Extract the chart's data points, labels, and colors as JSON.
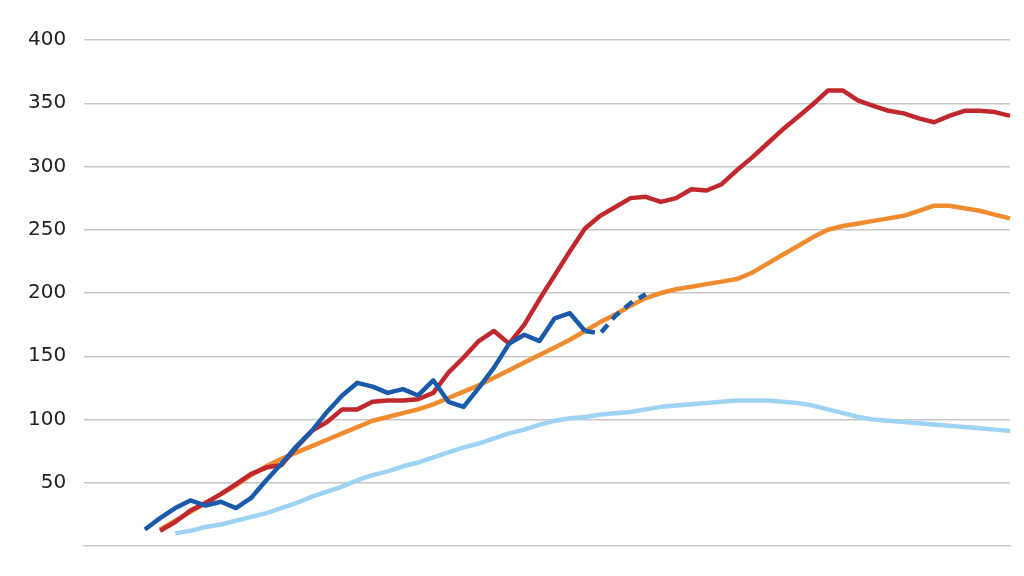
{
  "chart_data": {
    "type": "line",
    "categories": [
      null,
      null,
      null,
      null,
      null,
      null,
      null,
      null,
      null,
      null,
      null,
      null,
      null,
      null,
      null,
      null,
      null,
      null,
      null,
      null,
      null,
      null,
      null,
      null,
      null,
      null,
      null,
      null,
      null,
      null,
      null,
      null,
      null,
      null,
      null,
      null,
      null,
      null,
      null,
      null,
      null,
      null,
      null,
      null,
      null,
      null,
      null,
      null,
      null,
      null,
      null,
      null,
      null,
      null,
      null,
      null,
      null,
      null,
      null,
      null,
      null,
      null
    ],
    "series": [
      {
        "color": "#9fd3f3",
        "values": [
          null,
          null,
          null,
          null,
          null,
          null,
          10,
          12,
          15,
          17,
          20,
          23,
          26,
          30,
          34,
          39,
          43,
          47,
          52,
          56,
          59,
          63,
          66,
          70,
          74,
          78,
          81,
          85,
          89,
          92,
          96,
          99,
          101,
          102,
          104,
          105,
          106,
          108,
          110,
          111,
          112,
          113,
          114,
          115,
          115,
          115,
          114,
          113,
          111,
          108,
          105,
          102,
          100,
          99,
          98,
          97,
          96,
          95,
          94,
          93,
          92,
          91
        ]
      },
      {
        "color": "#ef8c2f",
        "values": [
          null,
          null,
          null,
          null,
          null,
          13,
          20,
          27,
          34,
          41,
          48,
          56,
          63,
          69,
          74,
          79,
          84,
          89,
          94,
          99,
          102,
          105,
          108,
          112,
          117,
          122,
          127,
          133,
          139,
          145,
          151,
          157,
          163,
          170,
          177,
          183,
          190,
          196,
          200,
          203,
          205,
          207,
          209,
          211,
          216,
          223,
          230,
          237,
          244,
          250,
          253,
          255,
          257,
          259,
          261,
          265,
          269,
          269,
          267,
          265,
          262,
          259
        ]
      },
      {
        "color": "#c0282d",
        "values": [
          null,
          null,
          null,
          null,
          null,
          12,
          19,
          28,
          34,
          41,
          49,
          57,
          62,
          64,
          78,
          91,
          98,
          108,
          108,
          114,
          115,
          115,
          116,
          121,
          137,
          149,
          162,
          170,
          160,
          175,
          195,
          214,
          233,
          251,
          261,
          268,
          275,
          276,
          272,
          275,
          282,
          281,
          286,
          297,
          307,
          318,
          329,
          339,
          349,
          360,
          360,
          352,
          348,
          344,
          342,
          338,
          335,
          340,
          344,
          344,
          343,
          340
        ]
      },
      {
        "color": "#1a5aa8",
        "values": [
          null,
          null,
          null,
          null,
          13,
          22,
          30,
          36,
          32,
          35,
          30,
          38,
          52,
          65,
          79,
          91,
          106,
          119,
          129,
          126,
          121,
          124,
          119,
          131,
          114,
          110,
          125,
          141,
          160,
          167,
          162,
          180,
          184,
          170,
          null,
          null,
          null,
          null,
          null,
          null,
          null,
          null,
          null,
          null,
          null,
          null,
          null,
          null,
          null,
          null,
          null,
          null,
          null,
          null,
          null,
          null,
          null,
          null,
          null,
          null,
          null,
          null
        ]
      },
      {
        "color": "#1a5aa8",
        "line_style": "dashed",
        "values": [
          null,
          null,
          null,
          null,
          null,
          null,
          null,
          null,
          null,
          null,
          null,
          null,
          null,
          null,
          null,
          null,
          null,
          null,
          null,
          null,
          null,
          null,
          null,
          null,
          null,
          null,
          null,
          null,
          null,
          null,
          null,
          null,
          null,
          170,
          168,
          182,
          192,
          199,
          null,
          null,
          null,
          null,
          null,
          null,
          null,
          null,
          null,
          null,
          null,
          null,
          null,
          null,
          null,
          null,
          null,
          null,
          null,
          null,
          null,
          null,
          null,
          null
        ]
      }
    ],
    "ylim": [
      0,
      400
    ],
    "yticks": [
      50,
      100,
      150,
      200,
      250,
      300,
      350,
      400
    ],
    "grid": "y",
    "tick_labels": "y",
    "legend": false,
    "marker": "none",
    "line_style": "solid"
  }
}
